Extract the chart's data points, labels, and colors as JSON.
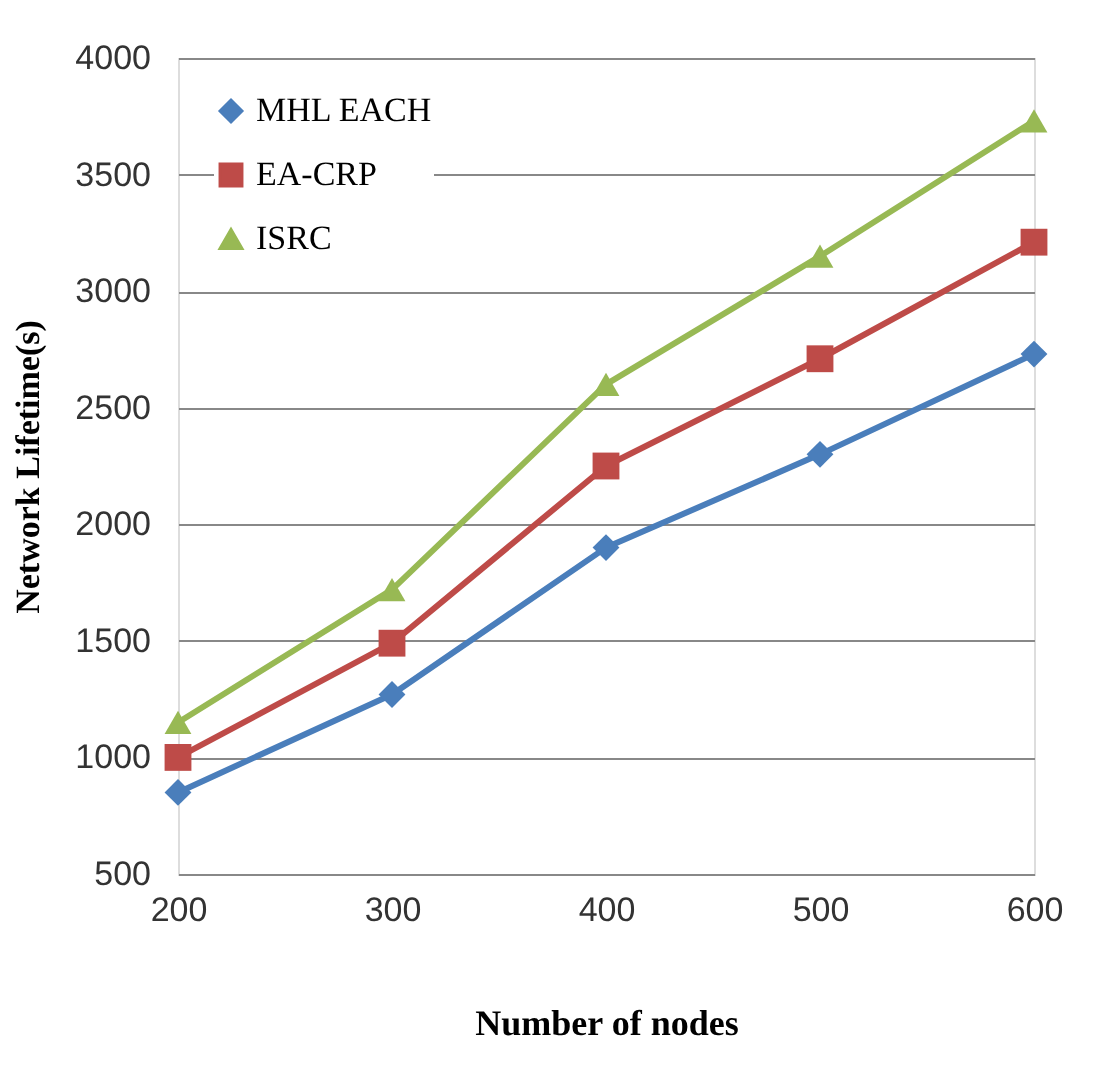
{
  "chart_data": {
    "type": "line",
    "xlabel": "Number of  nodes",
    "ylabel": "Network Lifetime(s)",
    "x": [
      200,
      300,
      400,
      500,
      600
    ],
    "xlim": [
      200,
      600
    ],
    "xticks": [
      200,
      300,
      400,
      500,
      600
    ],
    "ylim": [
      500,
      4000
    ],
    "yticks": [
      500,
      1000,
      1500,
      2000,
      2500,
      3000,
      3500,
      4000
    ],
    "grid": "y",
    "legend": "top left",
    "line_style": "solid",
    "series": [
      {
        "name": "MHL EACH",
        "color": "#4a7ebb",
        "marker": "diamond",
        "values": [
          850,
          1270,
          1900,
          2300,
          2730
        ]
      },
      {
        "name": "EA-CRP",
        "color": "#be4b48",
        "marker": "square",
        "values": [
          1000,
          1490,
          2250,
          2710,
          3210
        ]
      },
      {
        "name": "ISRC",
        "color": "#98b954",
        "marker": "triangle",
        "values": [
          1150,
          1720,
          2600,
          3150,
          3730
        ]
      }
    ]
  }
}
